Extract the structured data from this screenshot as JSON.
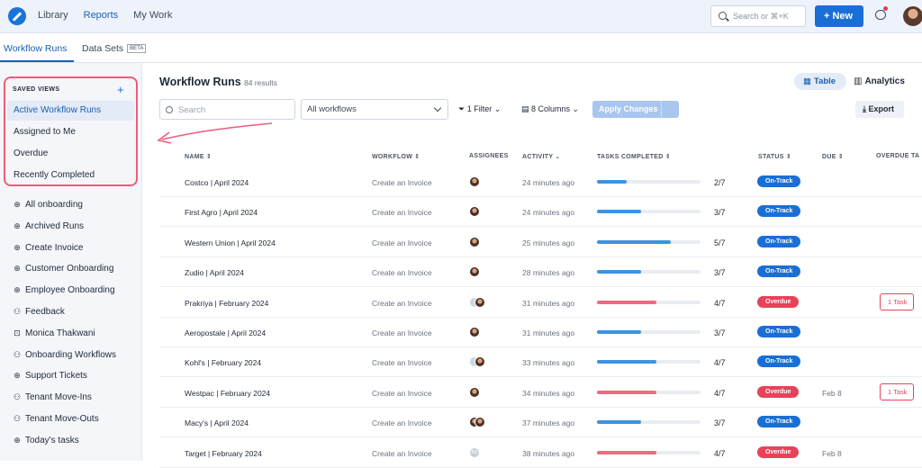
{
  "topnav": [
    "Library",
    "Reports",
    "My Work"
  ],
  "search_placeholder": "Search or ⌘+K",
  "new_label": "New",
  "tabs": {
    "workflow_runs": "Workflow Runs",
    "data_sets": "Data Sets",
    "beta": "BETA"
  },
  "sidebar": {
    "saved_title": "SAVED VIEWS",
    "saved_views": [
      "Active Workflow Runs",
      "Assigned to Me",
      "Overdue",
      "Recently Completed"
    ],
    "items": [
      {
        "label": "All onboarding",
        "icon": "globe-icon"
      },
      {
        "label": "Archived Runs",
        "icon": "globe-icon"
      },
      {
        "label": "Create Invoice",
        "icon": "globe-icon"
      },
      {
        "label": "Customer Onboarding",
        "icon": "globe-icon"
      },
      {
        "label": "Employee Onboarding",
        "icon": "globe-icon"
      },
      {
        "label": "Feedback",
        "icon": "users-icon"
      },
      {
        "label": "Monica Thakwani",
        "icon": "lock-icon"
      },
      {
        "label": "Onboarding Workflows",
        "icon": "users-icon"
      },
      {
        "label": "Support Tickets",
        "icon": "globe-icon"
      },
      {
        "label": "Tenant Move-Ins",
        "icon": "users-icon"
      },
      {
        "label": "Tenant Move-Outs",
        "icon": "users-icon"
      },
      {
        "label": "Today's tasks",
        "icon": "globe-icon"
      }
    ]
  },
  "main": {
    "title": "Workflow Runs",
    "count": "84 results",
    "table_label": "Table",
    "analytics_label": "Analytics",
    "search_placeholder": "Search",
    "workflow_select": "All workflows",
    "filter_label": "1 Filter",
    "columns_label": "8 Columns",
    "apply_label": "Apply Changes",
    "export_label": "Export"
  },
  "columns": [
    "NAME",
    "WORKFLOW",
    "ASSIGNEES",
    "ACTIVITY",
    "TASKS COMPLETED",
    "STATUS",
    "DUE",
    "OVERDUE TA"
  ],
  "rows": [
    {
      "name": "Costco | April 2024",
      "workflow": "Create an Invoice",
      "activity": "24 minutes ago",
      "done": 2,
      "total": 7,
      "count": "2/7",
      "status": "On-Track",
      "due": "",
      "overdue": "",
      "assignees": [
        "p"
      ]
    },
    {
      "name": "First Agro | April 2024",
      "workflow": "Create an Invoice",
      "activity": "24 minutes ago",
      "done": 3,
      "total": 7,
      "count": "3/7",
      "status": "On-Track",
      "due": "",
      "overdue": "",
      "assignees": [
        "p"
      ]
    },
    {
      "name": "Western Union | April 2024",
      "workflow": "Create an Invoice",
      "activity": "25 minutes ago",
      "done": 5,
      "total": 7,
      "count": "5/7",
      "status": "On-Track",
      "due": "",
      "overdue": "",
      "assignees": [
        "p"
      ]
    },
    {
      "name": "Zudio | April 2024",
      "workflow": "Create an Invoice",
      "activity": "28 minutes ago",
      "done": 3,
      "total": 7,
      "count": "3/7",
      "status": "On-Track",
      "due": "",
      "overdue": "",
      "assignees": [
        "p"
      ]
    },
    {
      "name": "Prakriya | February 2024",
      "workflow": "Create an Invoice",
      "activity": "31 minutes ago",
      "done": 4,
      "total": 7,
      "count": "4/7",
      "status": "Overdue",
      "due": "",
      "overdue": "1 Task",
      "assignees": [
        "g",
        "p"
      ]
    },
    {
      "name": "Aeropostale | April 2024",
      "workflow": "Create an Invoice",
      "activity": "31 minutes ago",
      "done": 3,
      "total": 7,
      "count": "3/7",
      "status": "On-Track",
      "due": "",
      "overdue": "",
      "assignees": [
        "p"
      ]
    },
    {
      "name": "Kohl's | February 2024",
      "workflow": "Create an Invoice",
      "activity": "33 minutes ago",
      "done": 4,
      "total": 7,
      "count": "4/7",
      "status": "On-Track",
      "due": "",
      "overdue": "",
      "assignees": [
        "g",
        "p"
      ]
    },
    {
      "name": "Westpac | February 2024",
      "workflow": "Create an Invoice",
      "activity": "34 minutes ago",
      "done": 4,
      "total": 7,
      "count": "4/7",
      "status": "Overdue",
      "due": "Feb 8",
      "overdue": "1 Task",
      "assignees": [
        "p"
      ]
    },
    {
      "name": "Macy's | April 2024",
      "workflow": "Create an Invoice",
      "activity": "37 minutes ago",
      "done": 3,
      "total": 7,
      "count": "3/7",
      "status": "On-Track",
      "due": "",
      "overdue": "",
      "assignees": [
        "p",
        "p"
      ]
    },
    {
      "name": "Target | February 2024",
      "workflow": "Create an Invoice",
      "activity": "38 minutes ago",
      "done": 4,
      "total": 7,
      "count": "4/7",
      "status": "Overdue",
      "due": "Feb 8",
      "overdue": "",
      "assignees": [
        "BO"
      ]
    }
  ],
  "colors": {
    "accent": "#1a6fd6",
    "on_track_bar": "#3d93e0",
    "overdue_bar": "#ee6b80",
    "overdue": "#e8425a",
    "highlight": "#ec5d7b"
  }
}
